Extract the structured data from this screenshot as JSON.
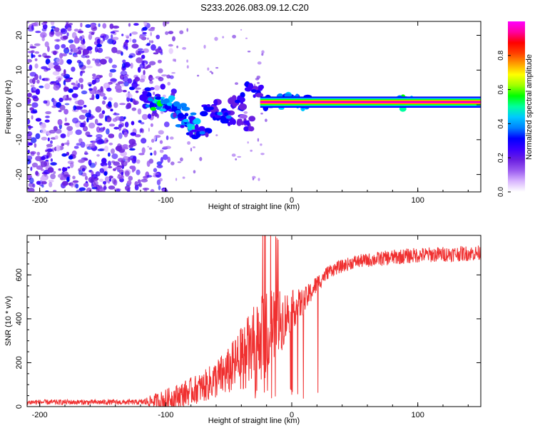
{
  "figure_title": "S233.2026.083.09.12.C20",
  "chart_data": [
    {
      "type": "heatmap",
      "xlabel": "Height of straight line (km)",
      "ylabel": "Frequency (Hz)",
      "xlim": [
        -210,
        150
      ],
      "ylim": [
        -25,
        24
      ],
      "xticks": [
        -200,
        -100,
        0,
        100
      ],
      "yticks": [
        -20,
        -10,
        0,
        10,
        20
      ],
      "colorbar": {
        "label": "Normalized spectral amplitude",
        "range": [
          0,
          1
        ],
        "ticks": [
          "0.0",
          "0.2",
          "0.4",
          "0.6",
          "0.8"
        ],
        "tick_values": [
          0.0,
          0.2,
          0.4,
          0.6,
          0.8
        ],
        "colors": [
          "#ffffff",
          "#d8b4fe",
          "#9b5cf0",
          "#6a1fe0",
          "#3b00ff",
          "#0000ff",
          "#0080ff",
          "#00c8ff",
          "#00ffa0",
          "#00ff00",
          "#a0ff00",
          "#ffff00",
          "#ffa000",
          "#ff4000",
          "#ff0000",
          "#ff00a0",
          "#ff00ff"
        ]
      },
      "features": {
        "noise_region_km": [
          -210,
          -115
        ],
        "carrier_line": {
          "x_start_km": -25,
          "x_end_km": 150,
          "freq_hz": 0.8,
          "amplitude": 1.0
        },
        "clusters": [
          {
            "x": -112,
            "f": 1.5,
            "amp": 0.4
          },
          {
            "x": -104,
            "f": 0.8,
            "amp": 0.55
          },
          {
            "x": -97,
            "f": 0.2,
            "amp": 0.45
          },
          {
            "x": -90,
            "f": -2.0,
            "amp": 0.4
          },
          {
            "x": -84,
            "f": -4.5,
            "amp": 0.45
          },
          {
            "x": -77,
            "f": -6.5,
            "amp": 0.5
          },
          {
            "x": -71,
            "f": -8.0,
            "amp": 0.35
          },
          {
            "x": -64,
            "f": -1.0,
            "amp": 0.3
          },
          {
            "x": -57,
            "f": -2.5,
            "amp": 0.4
          },
          {
            "x": -50,
            "f": -3.5,
            "amp": 0.35
          },
          {
            "x": -43,
            "f": 1.0,
            "amp": 0.3
          },
          {
            "x": -36,
            "f": -5.0,
            "amp": 0.25
          },
          {
            "x": -30,
            "f": 4.0,
            "amp": 0.3
          },
          {
            "x": -15,
            "f": 0.8,
            "amp": 0.45
          },
          {
            "x": -5,
            "f": 1.0,
            "amp": 0.5
          },
          {
            "x": 8,
            "f": 1.0,
            "amp": 0.45
          },
          {
            "x": 90,
            "f": 0.8,
            "amp": 0.6
          }
        ]
      }
    },
    {
      "type": "line",
      "xlabel": "Height of straight line (km)",
      "ylabel": "SNR (10 * v/v)",
      "xlim": [
        -210,
        150
      ],
      "ylim": [
        0,
        780
      ],
      "xticks": [
        -200,
        -100,
        0,
        100
      ],
      "yticks": [
        0,
        200,
        400,
        600
      ],
      "color": "#f03030",
      "series_profile": {
        "x": [
          -210,
          -120,
          -100,
          -70,
          -50,
          -30,
          -20,
          -10,
          0,
          10,
          20,
          30,
          50,
          80,
          100,
          150
        ],
        "baseline": [
          20,
          20,
          30,
          90,
          160,
          280,
          330,
          380,
          440,
          480,
          560,
          620,
          660,
          680,
          690,
          700
        ],
        "jitter": [
          12,
          12,
          50,
          70,
          110,
          180,
          200,
          150,
          90,
          60,
          40,
          30,
          30,
          35,
          35,
          35
        ]
      }
    }
  ]
}
